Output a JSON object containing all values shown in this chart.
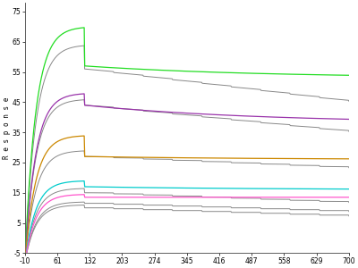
{
  "ylabel": "R e s p o n s e",
  "xlim": [
    -10,
    700
  ],
  "ylim": [
    -5,
    78
  ],
  "yticks": [
    -5,
    5,
    15,
    25,
    35,
    45,
    55,
    65,
    75
  ],
  "xticks": [
    -10,
    61,
    132,
    203,
    274,
    345,
    416,
    487,
    558,
    629,
    700
  ],
  "assoc_end": 120,
  "dissoc_end": 700,
  "start_x": -10,
  "background": "#ffffff",
  "series": [
    {
      "color": "#22dd22",
      "peak": 70,
      "assoc_plateau": 57,
      "dissoc_end_val": 53,
      "baseline": -8,
      "gray_peak": 64,
      "gray_assoc_plateau": 56,
      "gray_dissoc_end_val": 48
    },
    {
      "color": "#9933aa",
      "peak": 48,
      "assoc_plateau": 44,
      "dissoc_end_val": 38,
      "baseline": -8,
      "gray_peak": 46,
      "gray_assoc_plateau": 44,
      "gray_dissoc_end_val": 38
    },
    {
      "color": "#cc8800",
      "peak": 34,
      "assoc_plateau": 27,
      "dissoc_end_val": 26,
      "baseline": -8,
      "gray_peak": 29,
      "gray_assoc_plateau": 27,
      "gray_dissoc_end_val": 26
    },
    {
      "color": "#00cccc",
      "peak": 19,
      "assoc_plateau": 17,
      "dissoc_end_val": 16,
      "baseline": -8,
      "gray_peak": 16.5,
      "gray_assoc_plateau": 15,
      "gray_dissoc_end_val": 14.5
    },
    {
      "color": "#ff55cc",
      "peak": 14.5,
      "assoc_plateau": 13.5,
      "dissoc_end_val": 13.5,
      "baseline": -8,
      "gray_peak": 12,
      "gray_assoc_plateau": 11.5,
      "gray_dissoc_end_val": 11.5
    }
  ],
  "bottom_gray": {
    "color": "#888888",
    "peak": 11,
    "assoc_plateau": 10,
    "dissoc_end_val": 10,
    "baseline": -8
  }
}
